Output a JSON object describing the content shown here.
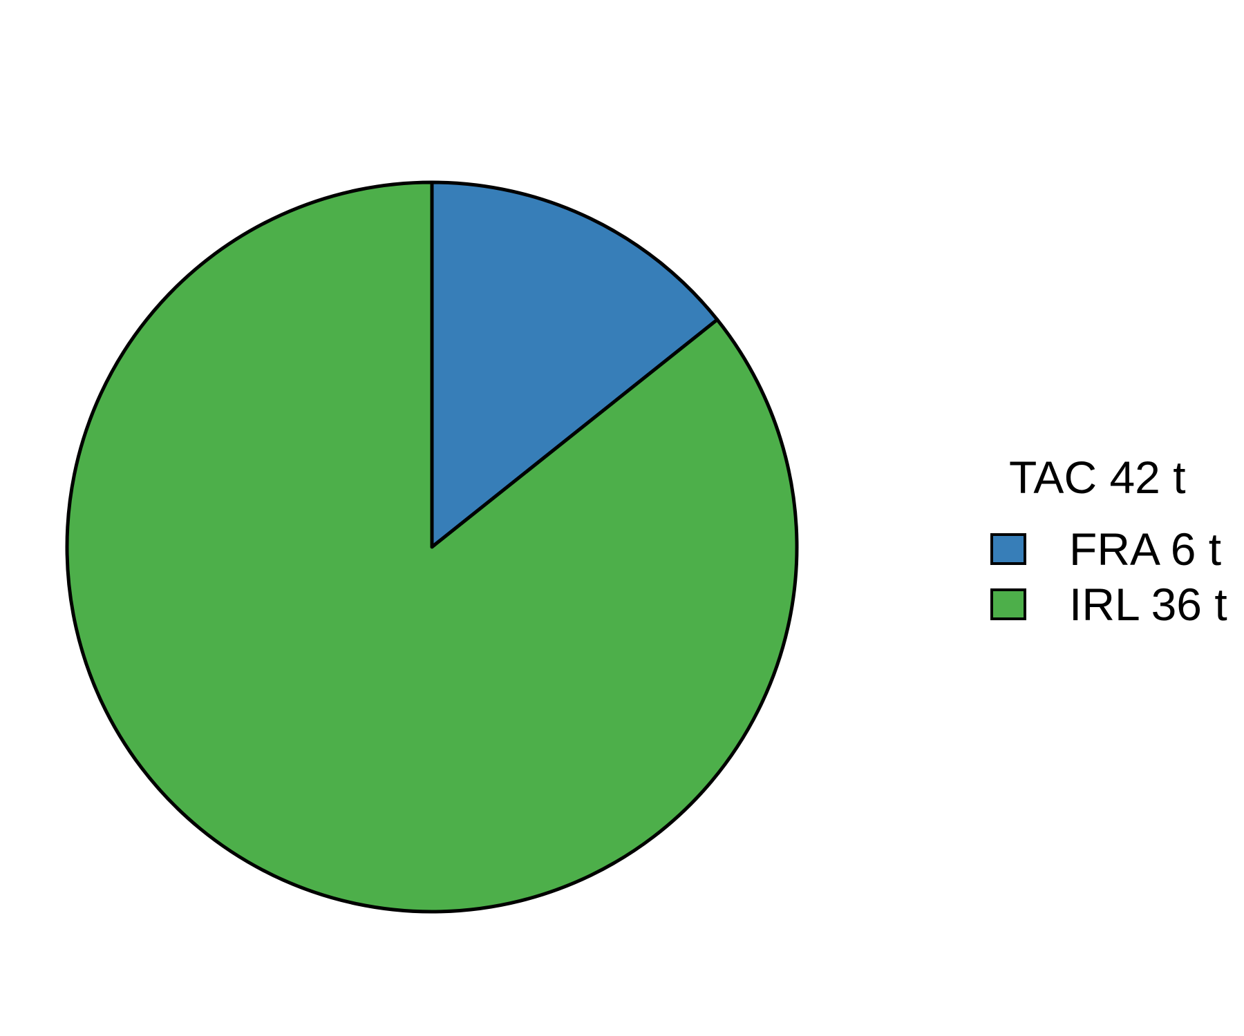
{
  "chart_data": {
    "type": "pie",
    "title": "",
    "legend_title": "TAC 42 t",
    "legend_position": "right",
    "start_angle_deg": 0,
    "direction": "clockwise",
    "slices": [
      {
        "label": "FRA 6 t",
        "value": 6,
        "color": "#377EB8"
      },
      {
        "label": "IRL 36 t",
        "value": 36,
        "color": "#4DAF4A"
      }
    ]
  }
}
